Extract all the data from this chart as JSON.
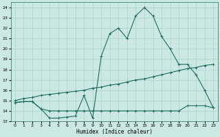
{
  "xlabel": "Humidex (Indice chaleur)",
  "ylabel": "",
  "xlim": [
    -0.5,
    23.5
  ],
  "ylim": [
    13,
    24.5
  ],
  "yticks": [
    13,
    14,
    15,
    16,
    17,
    18,
    19,
    20,
    21,
    22,
    23,
    24
  ],
  "xticks": [
    0,
    1,
    2,
    3,
    4,
    5,
    6,
    7,
    8,
    9,
    10,
    11,
    12,
    13,
    14,
    15,
    16,
    17,
    18,
    19,
    20,
    21,
    22,
    23
  ],
  "bg_color": "#cce8e4",
  "grid_color": "#a8d4cc",
  "line_color": "#1a6b5a",
  "line1_x": [
    0,
    1,
    2,
    3,
    4,
    5,
    6,
    7,
    8,
    9,
    10,
    11,
    12,
    13,
    14,
    15,
    16,
    17,
    18,
    19,
    20,
    21,
    22,
    23
  ],
  "line1_y": [
    14.8,
    14.9,
    14.9,
    14.2,
    13.3,
    13.3,
    13.4,
    13.5,
    15.5,
    13.3,
    19.3,
    21.5,
    22.0,
    21.0,
    23.2,
    24.0,
    23.2,
    21.2,
    20.0,
    18.5,
    18.5,
    17.5,
    16.0,
    14.3
  ],
  "line2_x": [
    0,
    1,
    2,
    3,
    4,
    5,
    6,
    7,
    8,
    9,
    10,
    11,
    12,
    13,
    14,
    15,
    16,
    17,
    18,
    19,
    20,
    21,
    22,
    23
  ],
  "line2_y": [
    14.8,
    14.9,
    14.9,
    14.2,
    14.0,
    14.0,
    14.0,
    14.0,
    14.0,
    14.0,
    14.0,
    14.0,
    14.0,
    14.0,
    14.0,
    14.0,
    14.0,
    14.0,
    14.0,
    14.0,
    14.5,
    14.5,
    14.5,
    14.3
  ],
  "line3_x": [
    0,
    1,
    2,
    3,
    4,
    5,
    6,
    7,
    8,
    9,
    10,
    11,
    12,
    13,
    14,
    15,
    16,
    17,
    18,
    19,
    20,
    21,
    22,
    23
  ],
  "line3_y": [
    15.0,
    15.2,
    15.3,
    15.5,
    15.6,
    15.7,
    15.8,
    15.9,
    16.0,
    16.2,
    16.3,
    16.5,
    16.6,
    16.8,
    17.0,
    17.1,
    17.3,
    17.5,
    17.7,
    17.9,
    18.1,
    18.2,
    18.4,
    18.5
  ]
}
